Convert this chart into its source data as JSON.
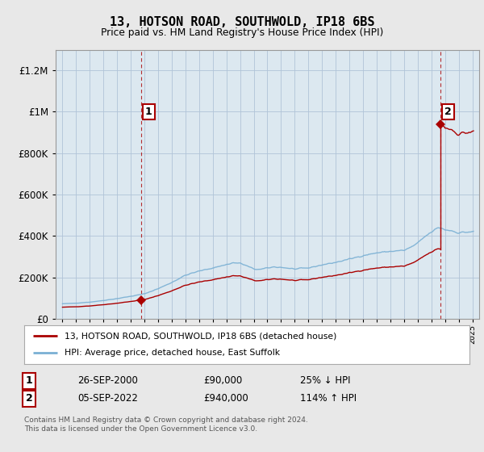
{
  "title": "13, HOTSON ROAD, SOUTHWOLD, IP18 6BS",
  "subtitle": "Price paid vs. HM Land Registry's House Price Index (HPI)",
  "legend_line1": "13, HOTSON ROAD, SOUTHWOLD, IP18 6BS (detached house)",
  "legend_line2": "HPI: Average price, detached house, East Suffolk",
  "sale1_date": "26-SEP-2000",
  "sale1_price": "£90,000",
  "sale1_pct": "25% ↓ HPI",
  "sale2_date": "05-SEP-2022",
  "sale2_price": "£940,000",
  "sale2_pct": "114% ↑ HPI",
  "footnote": "Contains HM Land Registry data © Crown copyright and database right 2024.\nThis data is licensed under the Open Government Licence v3.0.",
  "red_color": "#aa0000",
  "blue_color": "#7ab0d4",
  "background_color": "#e8e8e8",
  "plot_bg_color": "#dce8f0",
  "grid_color": "#b0c4d8",
  "ylim": [
    0,
    1300000
  ],
  "sale1_year": 2000.75,
  "sale1_value": 90000,
  "sale2_year": 2022.67,
  "sale2_value": 940000
}
